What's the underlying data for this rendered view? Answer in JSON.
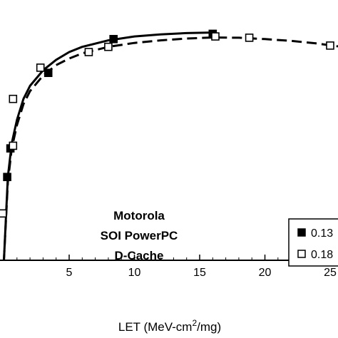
{
  "chart_data": {
    "type": "scatter",
    "xlabel": "LET (MeV-cm",
    "xlabel_sup": "2",
    "xlabel_tail": "/mg)",
    "xlim": [
      -0.3,
      25.6
    ],
    "ylim": [
      0,
      1
    ],
    "x_ticks": [
      5,
      10,
      15,
      20,
      25
    ],
    "x_tick_labels": [
      "5",
      "10",
      "15",
      "20",
      "25"
    ],
    "annotation": [
      "Motorola",
      "SOI PowerPC",
      "D-Cache"
    ],
    "legend_placement": "bottom-right",
    "series": [
      {
        "name": "0.13",
        "marker": "filled-square",
        "line": "solid",
        "points": [
          [
            0.25,
            0.32
          ],
          [
            0.5,
            0.43
          ],
          [
            3.4,
            0.72
          ],
          [
            8.4,
            0.85
          ],
          [
            16.0,
            0.87
          ]
        ],
        "fit": [
          [
            0.0,
            0.0
          ],
          [
            0.3,
            0.32
          ],
          [
            0.6,
            0.45
          ],
          [
            1.0,
            0.54
          ],
          [
            1.5,
            0.62
          ],
          [
            2.0,
            0.67
          ],
          [
            3.0,
            0.73
          ],
          [
            4.0,
            0.77
          ],
          [
            5.0,
            0.8
          ],
          [
            6.0,
            0.82
          ],
          [
            8.0,
            0.845
          ],
          [
            10.0,
            0.86
          ],
          [
            12.0,
            0.868
          ],
          [
            14.0,
            0.873
          ],
          [
            16.0,
            0.875
          ]
        ]
      },
      {
        "name": "0.18",
        "marker": "open-square",
        "line": "dashed",
        "points": [
          [
            -0.1,
            0.18
          ],
          [
            0.7,
            0.44
          ],
          [
            0.7,
            0.62
          ],
          [
            2.8,
            0.74
          ],
          [
            6.5,
            0.8
          ],
          [
            8.0,
            0.82
          ],
          [
            16.2,
            0.86
          ],
          [
            18.8,
            0.855
          ],
          [
            25.0,
            0.825
          ]
        ],
        "fit": [
          [
            0.0,
            0.0
          ],
          [
            0.3,
            0.3
          ],
          [
            0.6,
            0.43
          ],
          [
            1.0,
            0.52
          ],
          [
            1.5,
            0.6
          ],
          [
            2.0,
            0.65
          ],
          [
            3.0,
            0.71
          ],
          [
            4.0,
            0.75
          ],
          [
            5.0,
            0.775
          ],
          [
            6.0,
            0.795
          ],
          [
            8.0,
            0.82
          ],
          [
            10.0,
            0.835
          ],
          [
            12.0,
            0.845
          ],
          [
            14.0,
            0.852
          ],
          [
            16.0,
            0.856
          ],
          [
            18.0,
            0.855
          ],
          [
            20.0,
            0.85
          ],
          [
            22.0,
            0.843
          ],
          [
            24.0,
            0.833
          ],
          [
            25.6,
            0.822
          ]
        ]
      }
    ]
  }
}
